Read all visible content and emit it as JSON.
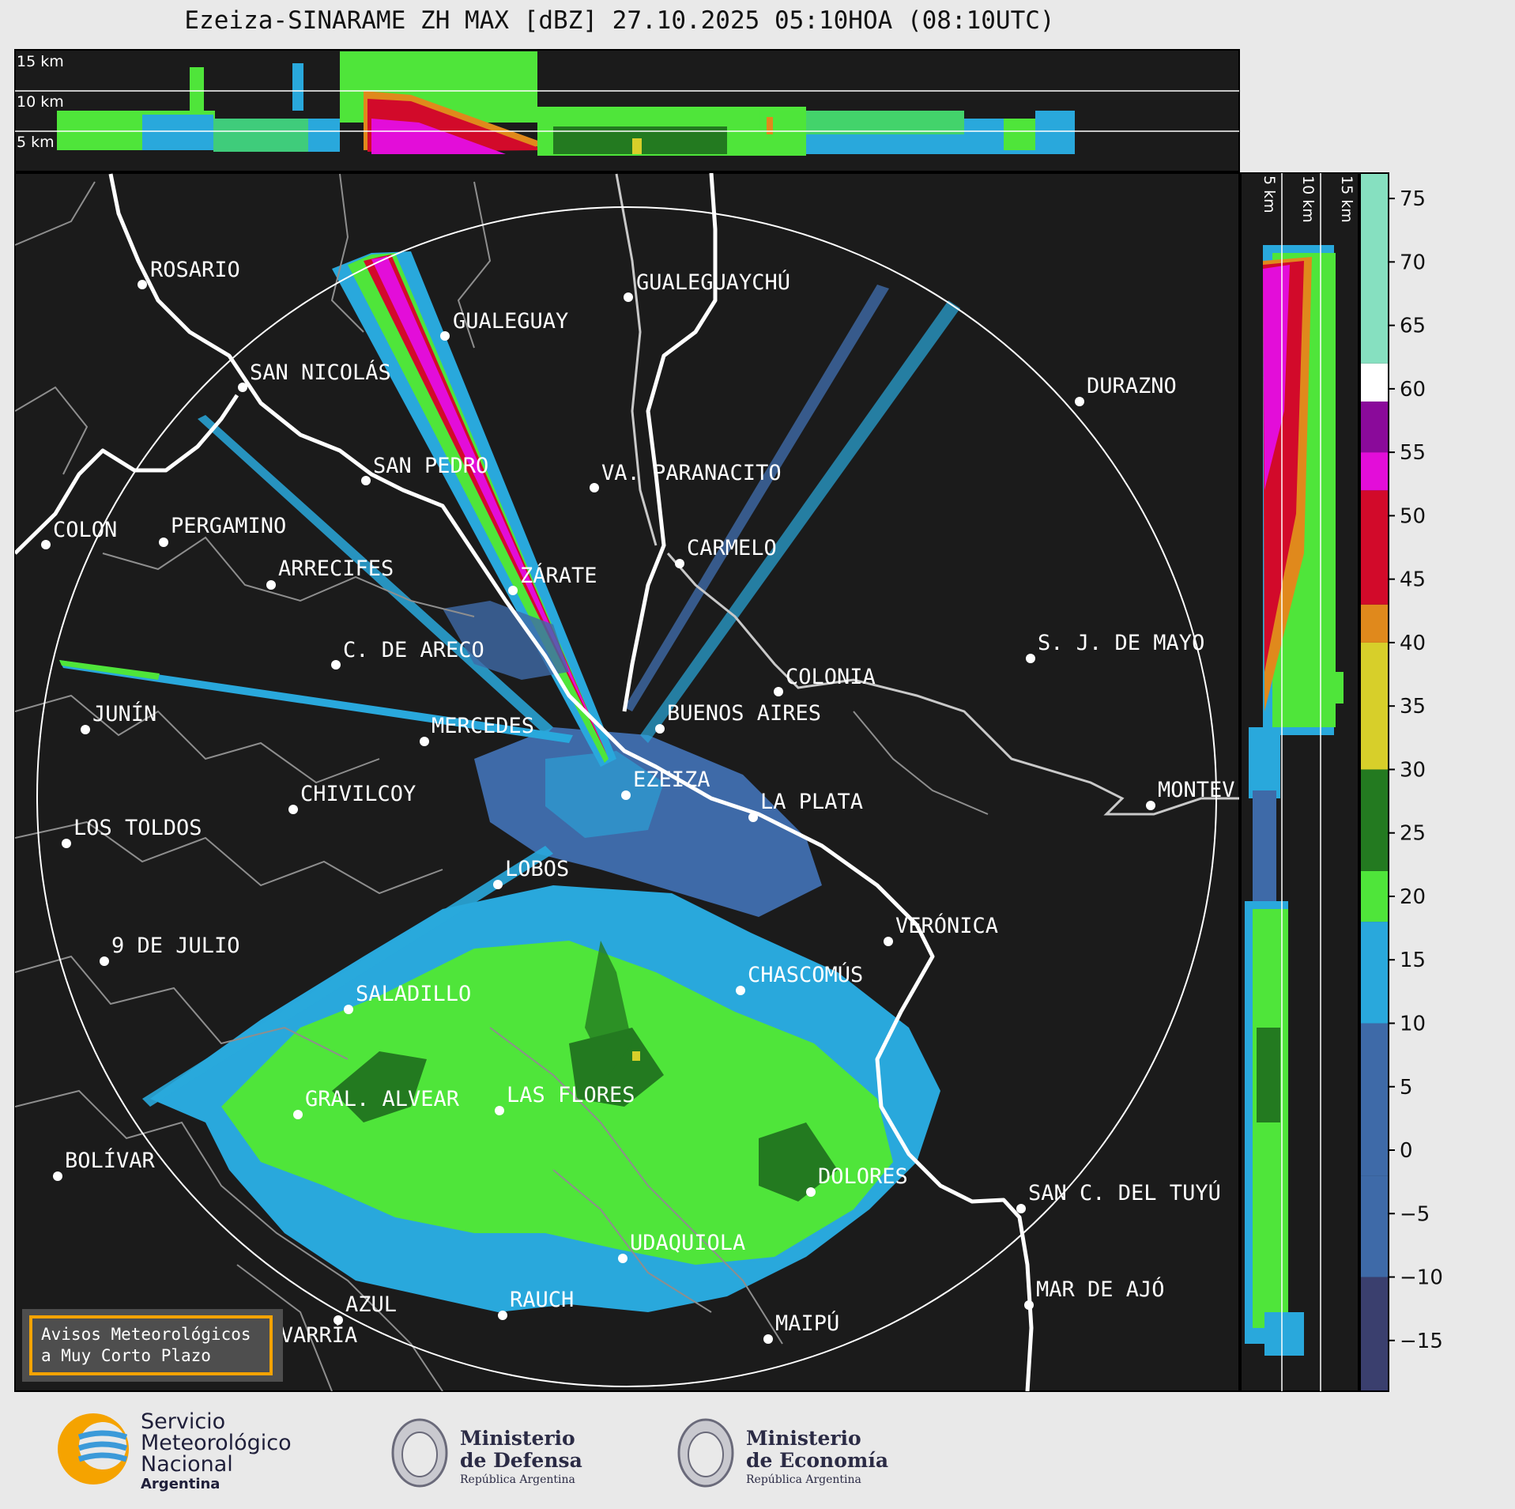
{
  "title": "Ezeiza-SINARAME ZH MAX [dBZ] 27.10.2025 05:10HOA (08:10UTC)",
  "top_panel": {
    "km_labels": [
      "15 km",
      "10 km",
      "5 km"
    ]
  },
  "side_panel": {
    "km_labels": [
      "5 km",
      "10 km",
      "15 km"
    ]
  },
  "colorbar": {
    "ticks": [
      "75",
      "70",
      "65",
      "60",
      "55",
      "50",
      "45",
      "40",
      "35",
      "30",
      "25",
      "20",
      "15",
      "10",
      "5",
      "0",
      "−5",
      "−10",
      "−15"
    ],
    "colors": {
      "band_neg": "#3a3f6e",
      "band_low": "#3e6aa8",
      "band_blue": "#29a8dc",
      "band_green": "#4fe53a",
      "band_dkgreen": "#237a20",
      "band_yellow": "#d7cf2a",
      "band_orange": "#e0891c",
      "band_red": "#d20a2a",
      "band_magenta": "#e30dd9",
      "band_purple": "#8a0a9a",
      "band_white": "#ffffff",
      "band_teal": "#86e0c0"
    }
  },
  "cities": [
    {
      "name": "ROSARIO"
    },
    {
      "name": "GUALEGUAYCHÚ"
    },
    {
      "name": "GUALEGUAY"
    },
    {
      "name": "SAN NICOLÁS"
    },
    {
      "name": "DURAZNO"
    },
    {
      "name": "SAN PEDRO"
    },
    {
      "name": "VA. PARANACITO"
    },
    {
      "name": "COLON"
    },
    {
      "name": "PERGAMINO"
    },
    {
      "name": "CARMELO"
    },
    {
      "name": "ARRECIFES"
    },
    {
      "name": "ZÁRATE"
    },
    {
      "name": "C. DE ARECO"
    },
    {
      "name": "S. J. DE MAYO"
    },
    {
      "name": "COLONIA"
    },
    {
      "name": "JUNÍN"
    },
    {
      "name": "BUENOS AIRES"
    },
    {
      "name": "MERCEDES"
    },
    {
      "name": "EZEIZA"
    },
    {
      "name": "MONTEV"
    },
    {
      "name": "CHIVILCOY"
    },
    {
      "name": "LA PLATA"
    },
    {
      "name": "LOS TOLDOS"
    },
    {
      "name": "LOBOS"
    },
    {
      "name": "VERÓNICA"
    },
    {
      "name": "9 DE JULIO"
    },
    {
      "name": "CHASCOMÚS"
    },
    {
      "name": "SALADILLO"
    },
    {
      "name": "GRAL. ALVEAR"
    },
    {
      "name": "LAS FLORES"
    },
    {
      "name": "DOLORES"
    },
    {
      "name": "BOLÍVAR"
    },
    {
      "name": "SAN C. DEL TUYÚ"
    },
    {
      "name": "UDAQUIOLA"
    },
    {
      "name": "MAR DE AJÓ"
    },
    {
      "name": "RAUCH"
    },
    {
      "name": "AZUL"
    },
    {
      "name": "MAIPÚ"
    },
    {
      "name": "OLAVARRÍA"
    }
  ],
  "notice": {
    "line1": "Avisos Meteorológicos",
    "line2": "a Muy Corto Plazo"
  },
  "logos": {
    "smn": {
      "line1": "Servicio",
      "line2": "Meteorológico",
      "line3": "Nacional",
      "line4": "Argentina"
    },
    "defensa": {
      "line1": "Ministerio",
      "line2": "de Defensa",
      "line3": "República Argentina"
    },
    "economia": {
      "line1": "Ministerio",
      "line2": "de Economía",
      "line3": "República Argentina"
    }
  }
}
